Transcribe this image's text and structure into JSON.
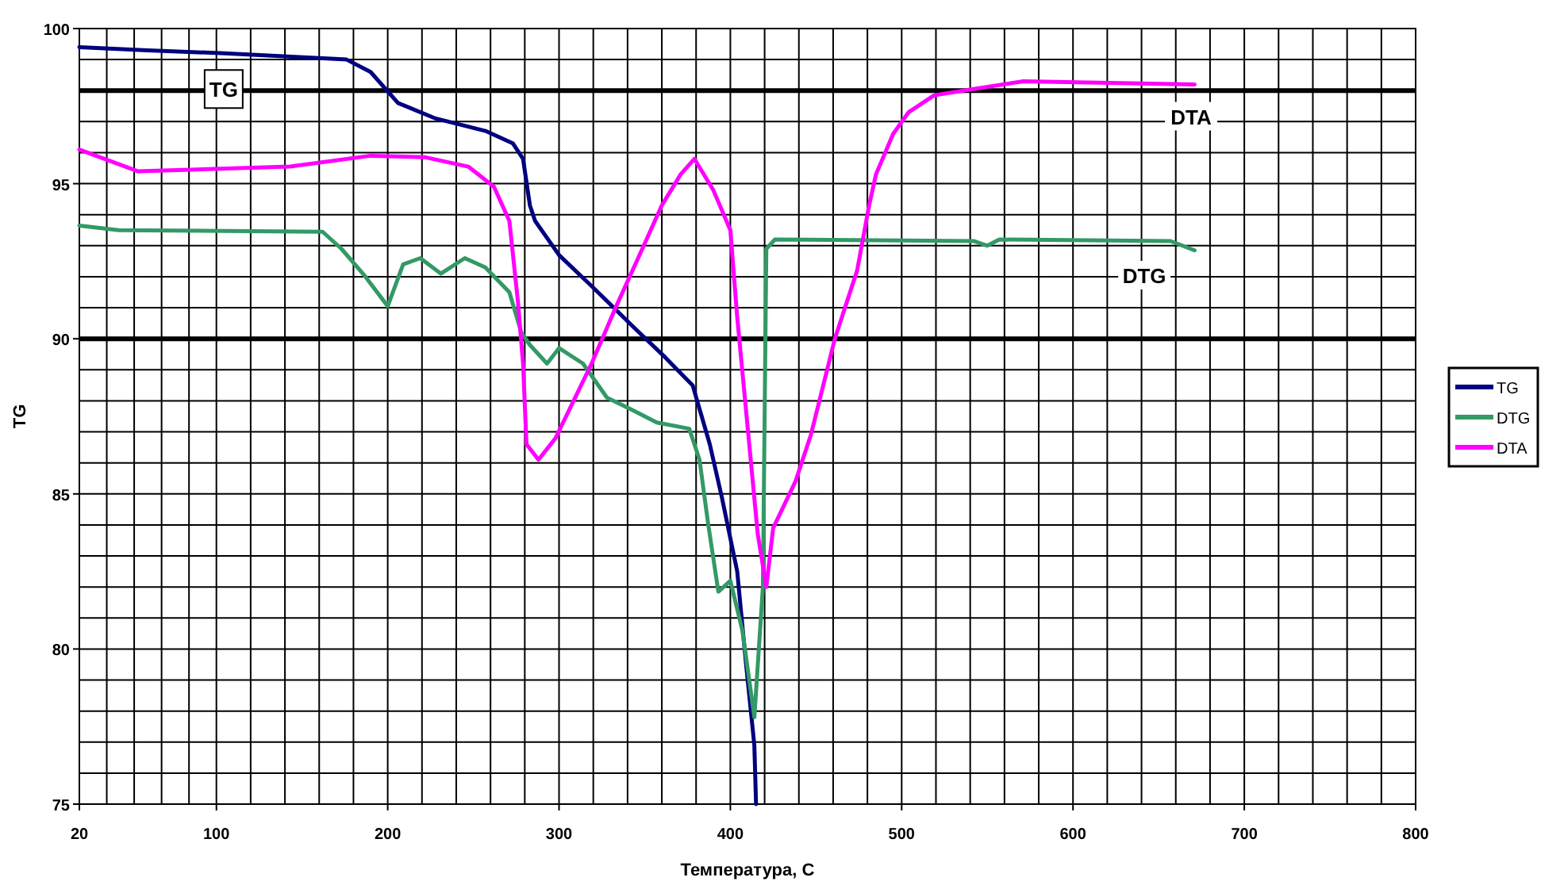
{
  "chart_data": {
    "type": "line",
    "xlabel": "Температура, С",
    "ylabel": "TG",
    "xlim": [
      20,
      800
    ],
    "ylim": [
      75,
      100
    ],
    "xticks": [
      20,
      {
        "value": 36,
        "label": null
      },
      {
        "value": 52,
        "label": null
      },
      {
        "value": 68,
        "label": null
      },
      {
        "value": 84,
        "label": null
      },
      100,
      {
        "value": 120,
        "label": null
      },
      {
        "value": 140,
        "label": null
      },
      {
        "value": 160,
        "label": null
      },
      {
        "value": 180,
        "label": null
      },
      200,
      {
        "value": 220,
        "label": null
      },
      {
        "value": 240,
        "label": null
      },
      {
        "value": 260,
        "label": null
      },
      {
        "value": 280,
        "label": null
      },
      300,
      {
        "value": 320,
        "label": null
      },
      {
        "value": 340,
        "label": null
      },
      {
        "value": 360,
        "label": null
      },
      {
        "value": 380,
        "label": null
      },
      400,
      {
        "value": 420,
        "label": null
      },
      {
        "value": 440,
        "label": null
      },
      {
        "value": 460,
        "label": null
      },
      {
        "value": 480,
        "label": null
      },
      500,
      {
        "value": 520,
        "label": null
      },
      {
        "value": 540,
        "label": null
      },
      {
        "value": 560,
        "label": null
      },
      {
        "value": 580,
        "label": null
      },
      600,
      {
        "value": 620,
        "label": null
      },
      {
        "value": 640,
        "label": null
      },
      {
        "value": 660,
        "label": null
      },
      {
        "value": 680,
        "label": null
      },
      700,
      {
        "value": 720,
        "label": null
      },
      {
        "value": 740,
        "label": null
      },
      {
        "value": 760,
        "label": null
      },
      {
        "value": 780,
        "label": null
      },
      800
    ],
    "yticks": [
      75,
      {
        "value": 76,
        "label": null
      },
      {
        "value": 77,
        "label": null
      },
      {
        "value": 78,
        "label": null
      },
      {
        "value": 79,
        "label": null
      },
      80,
      {
        "value": 81,
        "label": null
      },
      {
        "value": 82,
        "label": null
      },
      {
        "value": 83,
        "label": null
      },
      {
        "value": 84,
        "label": null
      },
      85,
      {
        "value": 86,
        "label": null
      },
      {
        "value": 87,
        "label": null
      },
      {
        "value": 88,
        "label": null
      },
      {
        "value": 89,
        "label": null
      },
      90,
      {
        "value": 91,
        "label": null
      },
      {
        "value": 92,
        "label": null
      },
      {
        "value": 93,
        "label": null
      },
      {
        "value": 94,
        "label": null
      },
      95,
      {
        "value": 96,
        "label": null
      },
      {
        "value": 97,
        "label": null
      },
      {
        "value": 99,
        "label": null
      },
      100
    ],
    "grid": true,
    "legend": "right",
    "marker": "none",
    "line_style": "solid",
    "series": [
      {
        "name": "TG",
        "color": "#000080",
        "x": [
          20,
          60,
          105,
          176,
          190,
          206,
          228,
          257,
          273,
          279,
          283,
          286,
          300,
          319,
          343,
          362,
          378,
          388,
          395,
          404,
          409,
          414,
          415
        ],
        "values": [
          99.4,
          99.3,
          99.2,
          99.0,
          98.6,
          97.6,
          97.1,
          96.7,
          96.3,
          95.8,
          94.3,
          93.8,
          92.7,
          91.7,
          90.4,
          89.4,
          88.5,
          86.6,
          84.9,
          82.5,
          79.6,
          76.9,
          75.0
        ]
      },
      {
        "name": "DTG",
        "color": "#339966",
        "x": [
          20,
          43,
          162,
          173,
          187,
          200,
          209,
          219,
          231,
          245,
          257,
          271,
          278,
          283,
          293,
          300,
          314,
          328,
          343,
          357,
          376,
          382,
          387,
          393,
          400,
          407,
          414,
          419,
          421,
          426,
          542,
          550,
          557,
          657,
          671
        ],
        "values": [
          93.65,
          93.5,
          93.45,
          92.9,
          92.0,
          91.05,
          92.4,
          92.6,
          92.1,
          92.6,
          92.3,
          91.5,
          90.2,
          89.8,
          89.2,
          89.7,
          89.2,
          88.1,
          87.7,
          87.3,
          87.1,
          86.1,
          84.05,
          81.85,
          82.2,
          80.6,
          77.8,
          82.0,
          92.9,
          93.2,
          93.15,
          93.0,
          93.2,
          93.15,
          92.85
        ]
      },
      {
        "name": "DTA",
        "color": "#ff00ff",
        "x": [
          20,
          54,
          143,
          190,
          222,
          247,
          262,
          271,
          276,
          279,
          281,
          288,
          298,
          319,
          333,
          347,
          360,
          371,
          379,
          390,
          400,
          404,
          416,
          421,
          425,
          438,
          447,
          461,
          474,
          481,
          485,
          495,
          504,
          519,
          542,
          571,
          671
        ],
        "values": [
          96.1,
          95.4,
          95.55,
          95.9,
          95.85,
          95.55,
          94.9,
          93.8,
          91.2,
          89.2,
          86.6,
          86.1,
          86.8,
          89.2,
          91.0,
          92.7,
          94.3,
          95.3,
          95.8,
          94.8,
          93.5,
          90.7,
          83.7,
          82.0,
          83.9,
          85.4,
          86.9,
          90.0,
          92.2,
          94.3,
          95.3,
          96.6,
          97.3,
          97.85,
          98.05,
          98.3,
          98.2
        ]
      }
    ],
    "ref_lines": [
      {
        "axis": "y",
        "value": 98,
        "color": "#000000"
      },
      {
        "axis": "y",
        "value": 90,
        "color": "#000000"
      }
    ],
    "annotations": [
      "TG",
      "DTA",
      "DTG"
    ]
  }
}
